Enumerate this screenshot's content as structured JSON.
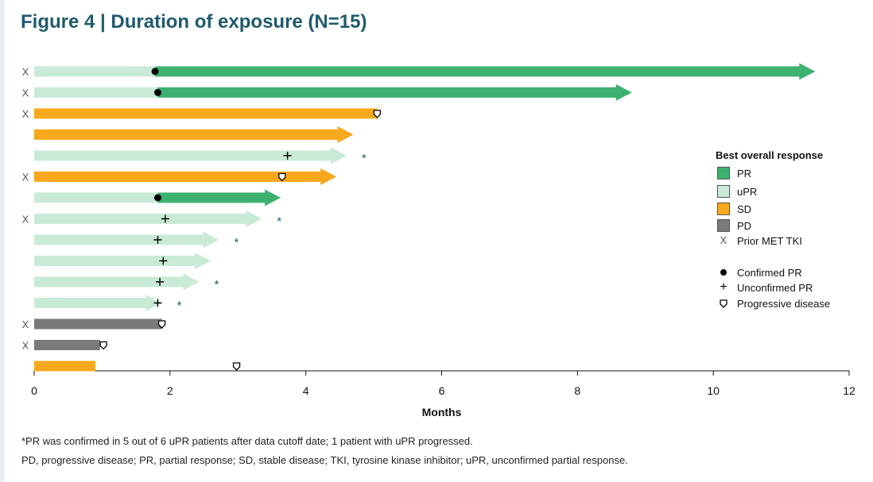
{
  "title": "Figure 4 | Duration of exposure (N=15)",
  "colors": {
    "PR": "#3db170",
    "uPR": "#c9ead7",
    "SD": "#f7a81c",
    "PD": "#7a7a7a",
    "title": "#1f5a6e",
    "asterisk": "#1f5a6e"
  },
  "legend": {
    "title": "Best overall response",
    "items": [
      {
        "key": "PR",
        "label": "PR",
        "symbol": "swatch"
      },
      {
        "key": "uPR",
        "label": "uPR",
        "symbol": "swatch"
      },
      {
        "key": "SD",
        "label": "SD",
        "symbol": "swatch"
      },
      {
        "key": "PD",
        "label": "PD",
        "symbol": "swatch"
      },
      {
        "key": "met",
        "label": "Prior MET TKI",
        "symbol": "x"
      },
      {
        "key": "cpr",
        "label": "Confirmed PR",
        "symbol": "dot"
      },
      {
        "key": "upr",
        "label": "Unconfirmed PR",
        "symbol": "plus"
      },
      {
        "key": "pd",
        "label": "Progressive disease",
        "symbol": "shield"
      }
    ]
  },
  "footnotes": [
    "*PR was confirmed in 5 out of 6 uPR patients after data cutoff date; 1 patient with uPR progressed.",
    "PD, progressive disease; PR, partial response; SD, stable disease; TKI, tyrosine kinase inhibitor; uPR, unconfirmed partial response."
  ],
  "chart_data": {
    "type": "bar",
    "orientation": "horizontal swimmer",
    "title": "Figure 4 | Duration of exposure (N=15)",
    "xlabel": "Months",
    "ylabel": "",
    "xlim": [
      0,
      12
    ],
    "xticks": [
      "0",
      "2",
      "4",
      "6",
      "8",
      "10",
      "12"
    ],
    "x_marker_label": "X",
    "asterisk_label": "*",
    "patients": [
      {
        "end": 11.5,
        "arrow": true,
        "prior_met_tki": true,
        "segments": [
          {
            "status": "uPR",
            "from": 0,
            "to": 1.78
          },
          {
            "status": "PR",
            "from": 1.78,
            "to": 11.5
          }
        ],
        "markers": [
          {
            "type": "confirmed_pr",
            "x": 1.78
          }
        ],
        "asterisk": false
      },
      {
        "end": 8.8,
        "arrow": true,
        "prior_met_tki": true,
        "segments": [
          {
            "status": "uPR",
            "from": 0,
            "to": 1.82
          },
          {
            "status": "PR",
            "from": 1.82,
            "to": 8.8
          }
        ],
        "markers": [
          {
            "type": "confirmed_pr",
            "x": 1.82
          }
        ],
        "asterisk": false
      },
      {
        "end": 5.05,
        "arrow": false,
        "prior_met_tki": true,
        "segments": [
          {
            "status": "SD",
            "from": 0,
            "to": 5.05
          }
        ],
        "markers": [
          {
            "type": "progressive_disease",
            "x": 5.05
          }
        ],
        "asterisk": false
      },
      {
        "end": 4.7,
        "arrow": true,
        "prior_met_tki": false,
        "segments": [
          {
            "status": "SD",
            "from": 0,
            "to": 4.7
          }
        ],
        "markers": [],
        "asterisk": false
      },
      {
        "end": 4.6,
        "arrow": true,
        "prior_met_tki": false,
        "segments": [
          {
            "status": "uPR",
            "from": 0,
            "to": 4.6
          }
        ],
        "markers": [
          {
            "type": "unconfirmed_pr",
            "x": 3.73
          }
        ],
        "asterisk": true
      },
      {
        "end": 4.45,
        "arrow": true,
        "prior_met_tki": true,
        "segments": [
          {
            "status": "SD",
            "from": 0,
            "to": 4.45
          }
        ],
        "markers": [
          {
            "type": "progressive_disease",
            "x": 3.65
          }
        ],
        "asterisk": false
      },
      {
        "end": 3.63,
        "arrow": true,
        "prior_met_tki": false,
        "segments": [
          {
            "status": "uPR",
            "from": 0,
            "to": 1.82
          },
          {
            "status": "PR",
            "from": 1.82,
            "to": 3.63
          }
        ],
        "markers": [
          {
            "type": "confirmed_pr",
            "x": 1.82
          }
        ],
        "asterisk": false
      },
      {
        "end": 3.35,
        "arrow": true,
        "prior_met_tki": true,
        "segments": [
          {
            "status": "uPR",
            "from": 0,
            "to": 3.35
          }
        ],
        "markers": [
          {
            "type": "unconfirmed_pr",
            "x": 1.93
          }
        ],
        "asterisk": true
      },
      {
        "end": 2.72,
        "arrow": true,
        "prior_met_tki": false,
        "segments": [
          {
            "status": "uPR",
            "from": 0,
            "to": 2.72
          }
        ],
        "markers": [
          {
            "type": "unconfirmed_pr",
            "x": 1.82
          }
        ],
        "asterisk": true
      },
      {
        "end": 2.6,
        "arrow": true,
        "prior_met_tki": false,
        "segments": [
          {
            "status": "uPR",
            "from": 0,
            "to": 2.6
          }
        ],
        "markers": [
          {
            "type": "unconfirmed_pr",
            "x": 1.9
          }
        ],
        "asterisk": false
      },
      {
        "end": 2.43,
        "arrow": true,
        "prior_met_tki": false,
        "segments": [
          {
            "status": "uPR",
            "from": 0,
            "to": 2.43
          }
        ],
        "markers": [
          {
            "type": "unconfirmed_pr",
            "x": 1.85
          }
        ],
        "asterisk": true
      },
      {
        "end": 1.88,
        "arrow": true,
        "prior_met_tki": false,
        "segments": [
          {
            "status": "uPR",
            "from": 0,
            "to": 1.88
          }
        ],
        "markers": [
          {
            "type": "unconfirmed_pr",
            "x": 1.82
          }
        ],
        "asterisk": true
      },
      {
        "end": 1.88,
        "arrow": false,
        "prior_met_tki": true,
        "segments": [
          {
            "status": "PD",
            "from": 0,
            "to": 1.88
          }
        ],
        "markers": [
          {
            "type": "progressive_disease",
            "x": 1.88
          }
        ],
        "asterisk": false
      },
      {
        "end": 0.97,
        "arrow": false,
        "prior_met_tki": true,
        "segments": [
          {
            "status": "PD",
            "from": 0,
            "to": 0.97
          }
        ],
        "markers": [
          {
            "type": "progressive_disease",
            "x": 1.02
          }
        ],
        "asterisk": false
      },
      {
        "end": 0.9,
        "arrow": false,
        "prior_met_tki": false,
        "segments": [
          {
            "status": "SD",
            "from": 0,
            "to": 0.9
          }
        ],
        "markers": [
          {
            "type": "progressive_disease",
            "x": 2.98
          }
        ],
        "asterisk": false
      }
    ]
  }
}
